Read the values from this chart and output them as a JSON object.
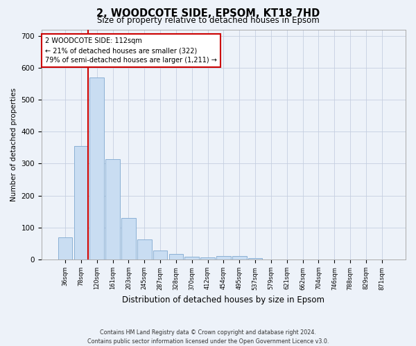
{
  "title": "2, WOODCOTE SIDE, EPSOM, KT18 7HD",
  "subtitle": "Size of property relative to detached houses in Epsom",
  "xlabel": "Distribution of detached houses by size in Epsom",
  "ylabel": "Number of detached properties",
  "bar_labels": [
    "36sqm",
    "78sqm",
    "120sqm",
    "161sqm",
    "203sqm",
    "245sqm",
    "287sqm",
    "328sqm",
    "370sqm",
    "412sqm",
    "454sqm",
    "495sqm",
    "537sqm",
    "579sqm",
    "621sqm",
    "662sqm",
    "704sqm",
    "746sqm",
    "788sqm",
    "829sqm",
    "871sqm"
  ],
  "bar_values": [
    70,
    355,
    570,
    315,
    130,
    63,
    27,
    17,
    8,
    6,
    11,
    10,
    5,
    0,
    0,
    0,
    0,
    0,
    0,
    0,
    0
  ],
  "bar_color": "#c9ddf2",
  "bar_edge_color": "#8ab0d4",
  "background_color": "#edf2f9",
  "grid_color": "#c5cfe0",
  "vline_color": "#cc0000",
  "annotation_text": "2 WOODCOTE SIDE: 112sqm\n← 21% of detached houses are smaller (322)\n79% of semi-detached houses are larger (1,211) →",
  "annotation_box_color": "#ffffff",
  "annotation_box_edge": "#cc0000",
  "footnote": "Contains HM Land Registry data © Crown copyright and database right 2024.\nContains public sector information licensed under the Open Government Licence v3.0.",
  "ylim": [
    0,
    720
  ],
  "figsize": [
    6.0,
    5.0
  ],
  "dpi": 100
}
